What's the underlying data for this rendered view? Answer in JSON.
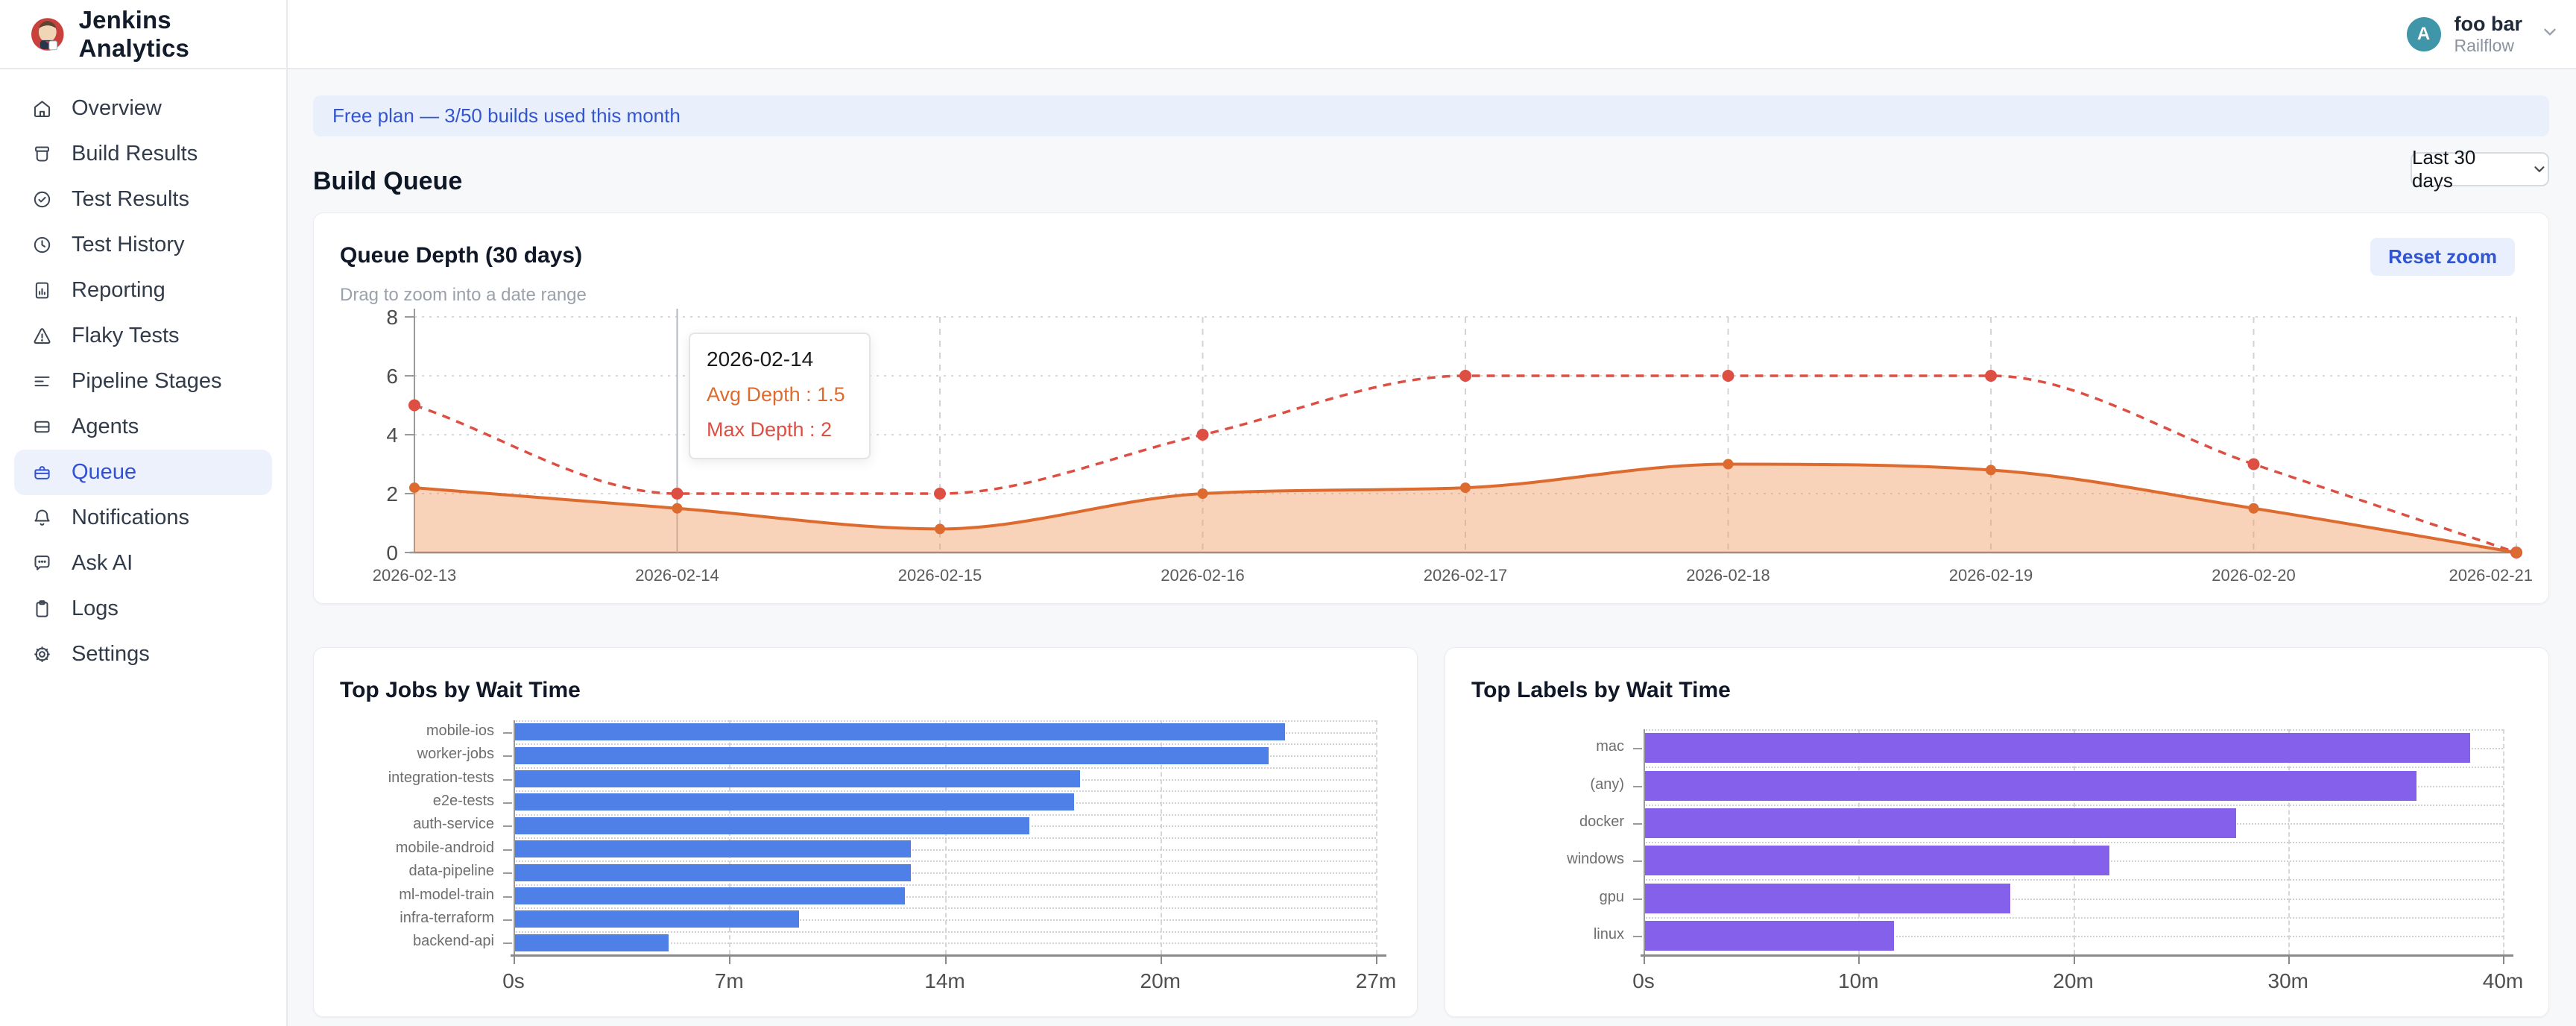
{
  "header": {
    "brand": "Jenkins Analytics",
    "user": {
      "initial": "A",
      "name": "foo bar",
      "org": "Railflow"
    }
  },
  "sidebar": {
    "items": [
      {
        "id": "overview",
        "label": "Overview",
        "icon": "home",
        "active": false
      },
      {
        "id": "build-results",
        "label": "Build Results",
        "icon": "archive",
        "active": false
      },
      {
        "id": "test-results",
        "label": "Test Results",
        "icon": "check-circle",
        "active": false
      },
      {
        "id": "test-history",
        "label": "Test History",
        "icon": "clock",
        "active": false
      },
      {
        "id": "reporting",
        "label": "Reporting",
        "icon": "report",
        "active": false
      },
      {
        "id": "flaky-tests",
        "label": "Flaky Tests",
        "icon": "warning",
        "active": false
      },
      {
        "id": "pipeline-stages",
        "label": "Pipeline Stages",
        "icon": "pipeline",
        "active": false
      },
      {
        "id": "agents",
        "label": "Agents",
        "icon": "server",
        "active": false
      },
      {
        "id": "queue",
        "label": "Queue",
        "icon": "toolbox",
        "active": true
      },
      {
        "id": "notifications",
        "label": "Notifications",
        "icon": "bell",
        "active": false
      },
      {
        "id": "ask-ai",
        "label": "Ask AI",
        "icon": "chat",
        "active": false
      },
      {
        "id": "logs",
        "label": "Logs",
        "icon": "clipboard",
        "active": false
      },
      {
        "id": "settings",
        "label": "Settings",
        "icon": "gear",
        "active": false
      }
    ]
  },
  "banner": {
    "text": "Free plan — 3/50 builds used this month"
  },
  "page": {
    "title": "Build Queue",
    "range_label": "Last 30 days"
  },
  "queue_card": {
    "title": "Queue Depth (30 days)",
    "subtitle": "Drag to zoom into a date range",
    "reset_label": "Reset zoom",
    "tooltip": {
      "title": "2026-02-14",
      "rows": [
        {
          "label": "Avg Depth",
          "value": "1.5",
          "color": "#dd6b2f"
        },
        {
          "label": "Max Depth",
          "value": "2",
          "color": "#dd4f43"
        }
      ]
    }
  },
  "chart_data": [
    {
      "id": "queue_depth",
      "type": "line",
      "title": "Queue Depth (30 days)",
      "x": [
        "2026-02-13",
        "2026-02-14",
        "2026-02-15",
        "2026-02-16",
        "2026-02-17",
        "2026-02-18",
        "2026-02-19",
        "2026-02-20",
        "2026-02-21"
      ],
      "ylim": [
        0,
        8
      ],
      "yticks": [
        0,
        2,
        4,
        6,
        8
      ],
      "grid": true,
      "legend_position": "none",
      "crosshair_index": 1,
      "series": [
        {
          "name": "Avg Depth",
          "style": "solid",
          "color": "#dd6b2f",
          "area_fill": "rgba(240,150,88,0.42)",
          "values": [
            2.2,
            1.5,
            0.8,
            2,
            2.2,
            3,
            2.8,
            1.5,
            0
          ]
        },
        {
          "name": "Max Depth",
          "style": "dashed",
          "color": "#dd4f43",
          "values": [
            5,
            2,
            2,
            4,
            6,
            6,
            6,
            3,
            0
          ]
        }
      ]
    },
    {
      "id": "top_jobs",
      "type": "bar",
      "orientation": "horizontal",
      "title": "Top Jobs by Wait Time",
      "categories": [
        "mobile-ios",
        "worker-jobs",
        "integration-tests",
        "e2e-tests",
        "auth-service",
        "mobile-android",
        "data-pipeline",
        "ml-model-train",
        "infra-terraform",
        "backend-api"
      ],
      "values": [
        24.1,
        23.6,
        17.7,
        17.5,
        16.1,
        12.4,
        12.4,
        12.2,
        8.9,
        4.8
      ],
      "unit": "minutes",
      "xlim": [
        0,
        27
      ],
      "xticks": [
        "0s",
        "7m",
        "14m",
        "20m",
        "27m"
      ],
      "bar_color": "#4e80e8",
      "grid": true
    },
    {
      "id": "top_labels",
      "type": "bar",
      "orientation": "horizontal",
      "title": "Top Labels by Wait Time",
      "categories": [
        "mac",
        "(any)",
        "docker",
        "windows",
        "gpu",
        "linux"
      ],
      "values": [
        38.4,
        35.9,
        27.5,
        21.6,
        17.0,
        11.6
      ],
      "unit": "minutes",
      "xlim": [
        0,
        40
      ],
      "xticks": [
        "0s",
        "10m",
        "20m",
        "30m",
        "40m"
      ],
      "bar_color": "#8560ea",
      "grid": true
    }
  ],
  "colors": {
    "accent_blue": "#3351d4",
    "banner_bg": "#e9f0fc",
    "avatar_bg": "#3e96a8",
    "avg_line": "#dd6b2f",
    "max_line": "#dd4f43",
    "jobs_bar": "#4e80e8",
    "labels_bar": "#8560ea"
  }
}
